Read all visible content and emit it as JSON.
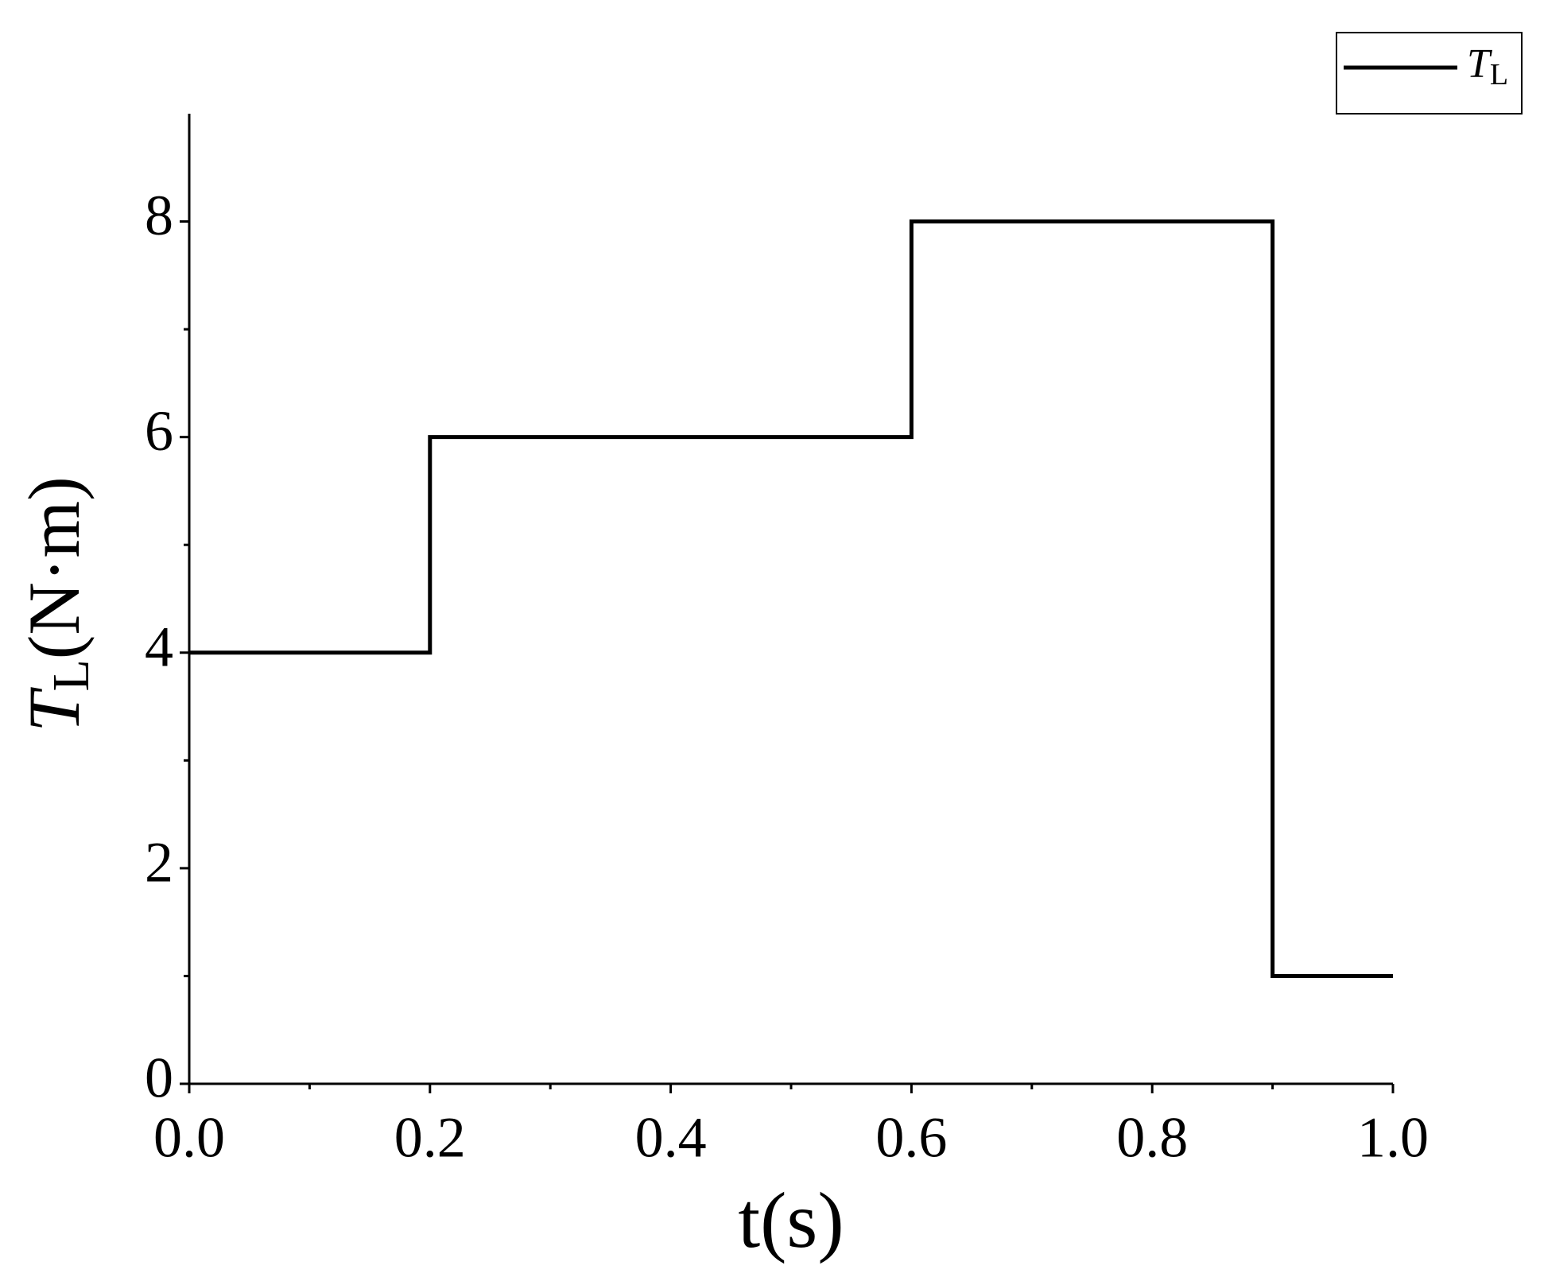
{
  "chart_data": {
    "type": "line",
    "x_label": "t(s)",
    "y_label": {
      "symbol": "T",
      "subscript": "L",
      "unit": "(N·m)"
    },
    "series": [
      {
        "name": "T",
        "name_subscript": "L",
        "color": "#000000",
        "x": [
          0,
          0.2,
          0.2,
          0.6,
          0.6,
          0.9,
          0.9,
          1.0
        ],
        "values": [
          4,
          4,
          6,
          6,
          8,
          8,
          1,
          1
        ]
      }
    ],
    "xlim": [
      0,
      1
    ],
    "xticks": [
      {
        "value": 0,
        "label": "0.0"
      },
      {
        "value": 0.2,
        "label": "0.2"
      },
      {
        "value": 0.4,
        "label": "0.4"
      },
      {
        "value": 0.6,
        "label": "0.6"
      },
      {
        "value": 0.8,
        "label": "0.8"
      },
      {
        "value": 1,
        "label": "1.0"
      }
    ],
    "ylim": [
      0,
      9
    ],
    "yticks": [
      0,
      2,
      4,
      6,
      8
    ],
    "grid": false,
    "legend": "top-right"
  }
}
